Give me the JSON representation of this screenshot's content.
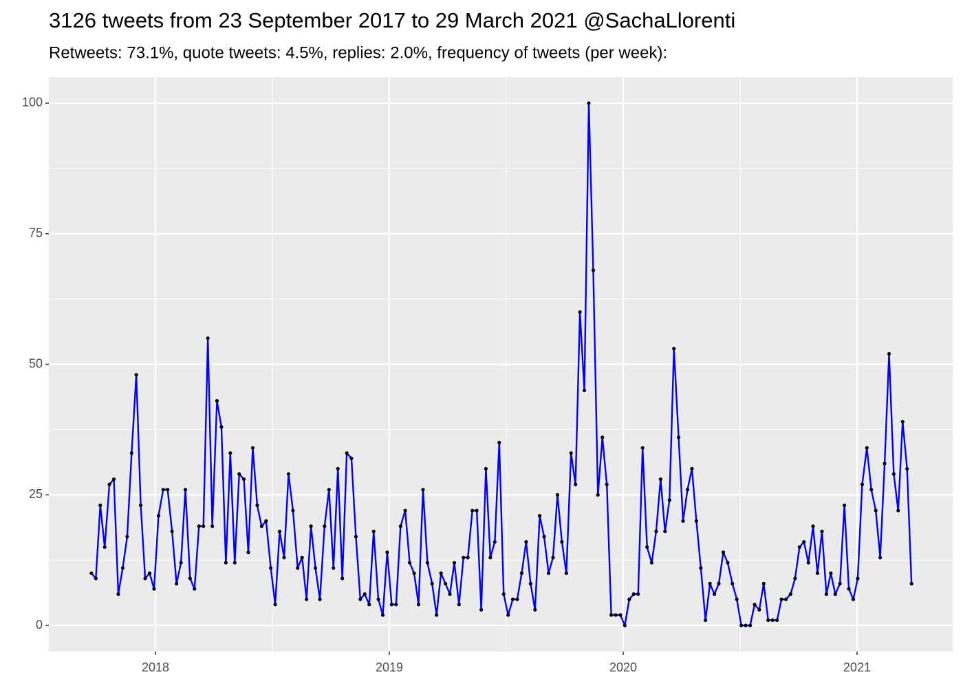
{
  "chart_data": {
    "type": "line",
    "title": "3126 tweets from 23 September 2017 to 29 March 2021 @SachaLlorenti",
    "subtitle": "Retweets: 73.1%, quote tweets: 4.5%, replies: 2.0%, frequency of tweets (per week):",
    "x": [
      2017.726,
      2017.745,
      2017.764,
      2017.783,
      2017.803,
      2017.822,
      2017.841,
      2017.86,
      2017.879,
      2017.898,
      2017.918,
      2017.937,
      2017.956,
      2017.975,
      2017.994,
      2018.013,
      2018.033,
      2018.052,
      2018.071,
      2018.09,
      2018.109,
      2018.128,
      2018.148,
      2018.167,
      2018.186,
      2018.205,
      2018.224,
      2018.243,
      2018.263,
      2018.282,
      2018.301,
      2018.32,
      2018.339,
      2018.358,
      2018.378,
      2018.397,
      2018.416,
      2018.435,
      2018.454,
      2018.473,
      2018.493,
      2018.512,
      2018.531,
      2018.55,
      2018.569,
      2018.588,
      2018.608,
      2018.627,
      2018.646,
      2018.665,
      2018.684,
      2018.703,
      2018.723,
      2018.742,
      2018.761,
      2018.78,
      2018.799,
      2018.818,
      2018.838,
      2018.857,
      2018.876,
      2018.895,
      2018.914,
      2018.933,
      2018.953,
      2018.972,
      2018.991,
      2019.01,
      2019.029,
      2019.048,
      2019.068,
      2019.087,
      2019.106,
      2019.125,
      2019.144,
      2019.163,
      2019.183,
      2019.202,
      2019.221,
      2019.24,
      2019.259,
      2019.278,
      2019.298,
      2019.317,
      2019.336,
      2019.355,
      2019.374,
      2019.393,
      2019.413,
      2019.432,
      2019.451,
      2019.47,
      2019.489,
      2019.508,
      2019.528,
      2019.547,
      2019.566,
      2019.585,
      2019.604,
      2019.623,
      2019.643,
      2019.662,
      2019.681,
      2019.7,
      2019.719,
      2019.738,
      2019.757,
      2019.777,
      2019.796,
      2019.815,
      2019.834,
      2019.853,
      2019.872,
      2019.892,
      2019.911,
      2019.93,
      2019.949,
      2019.968,
      2019.988,
      2020.007,
      2020.026,
      2020.045,
      2020.064,
      2020.083,
      2020.102,
      2020.122,
      2020.141,
      2020.16,
      2020.179,
      2020.198,
      2020.217,
      2020.237,
      2020.256,
      2020.275,
      2020.294,
      2020.313,
      2020.332,
      2020.352,
      2020.371,
      2020.39,
      2020.409,
      2020.428,
      2020.447,
      2020.467,
      2020.486,
      2020.505,
      2020.524,
      2020.543,
      2020.562,
      2020.582,
      2020.601,
      2020.62,
      2020.639,
      2020.658,
      2020.677,
      2020.696,
      2020.716,
      2020.735,
      2020.754,
      2020.773,
      2020.792,
      2020.812,
      2020.831,
      2020.85,
      2020.869,
      2020.888,
      2020.907,
      2020.927,
      2020.946,
      2020.965,
      2020.984,
      2021.003,
      2021.022,
      2021.042,
      2021.061,
      2021.08,
      2021.099,
      2021.118,
      2021.137,
      2021.157,
      2021.176,
      2021.195,
      2021.214,
      2021.233
    ],
    "values": [
      10,
      9,
      23,
      15,
      27,
      28,
      6,
      11,
      17,
      33,
      48,
      23,
      9,
      10,
      7,
      21,
      26,
      26,
      18,
      8,
      12,
      26,
      9,
      7,
      19,
      19,
      55,
      19,
      43,
      38,
      12,
      33,
      12,
      29,
      28,
      14,
      34,
      23,
      19,
      20,
      11,
      4,
      18,
      13,
      29,
      22,
      11,
      13,
      5,
      19,
      11,
      5,
      19,
      26,
      11,
      30,
      9,
      33,
      32,
      17,
      5,
      6,
      4,
      18,
      5,
      2,
      14,
      4,
      4,
      19,
      22,
      12,
      10,
      4,
      26,
      12,
      8,
      2,
      10,
      8,
      6,
      12,
      4,
      13,
      13,
      22,
      22,
      3,
      30,
      13,
      16,
      35,
      6,
      2,
      5,
      5,
      10,
      16,
      8,
      3,
      21,
      17,
      10,
      13,
      25,
      16,
      10,
      33,
      27,
      60,
      45,
      100,
      68,
      25,
      36,
      27,
      2,
      2,
      2,
      0,
      5,
      6,
      6,
      34,
      15,
      12,
      18,
      28,
      18,
      24,
      53,
      36,
      20,
      26,
      30,
      20,
      11,
      1,
      8,
      6,
      8,
      14,
      12,
      8,
      5,
      0,
      0,
      0,
      4,
      3,
      8,
      1,
      1,
      1,
      5,
      5,
      6,
      9,
      15,
      16,
      12,
      19,
      10,
      18,
      6,
      10,
      6,
      8,
      23,
      7,
      5,
      9,
      27,
      34,
      26,
      22,
      13,
      31,
      52,
      29,
      22,
      39,
      30,
      8
    ],
    "color": "#0000ff",
    "point_color": "#000000",
    "xlim": [
      2017.544,
      2021.409
    ],
    "xticks": [
      2018,
      2019,
      2020,
      2021
    ],
    "ylim": [
      -5,
      105
    ],
    "yticks": [
      0,
      25,
      50,
      75,
      100
    ],
    "grid": true
  }
}
